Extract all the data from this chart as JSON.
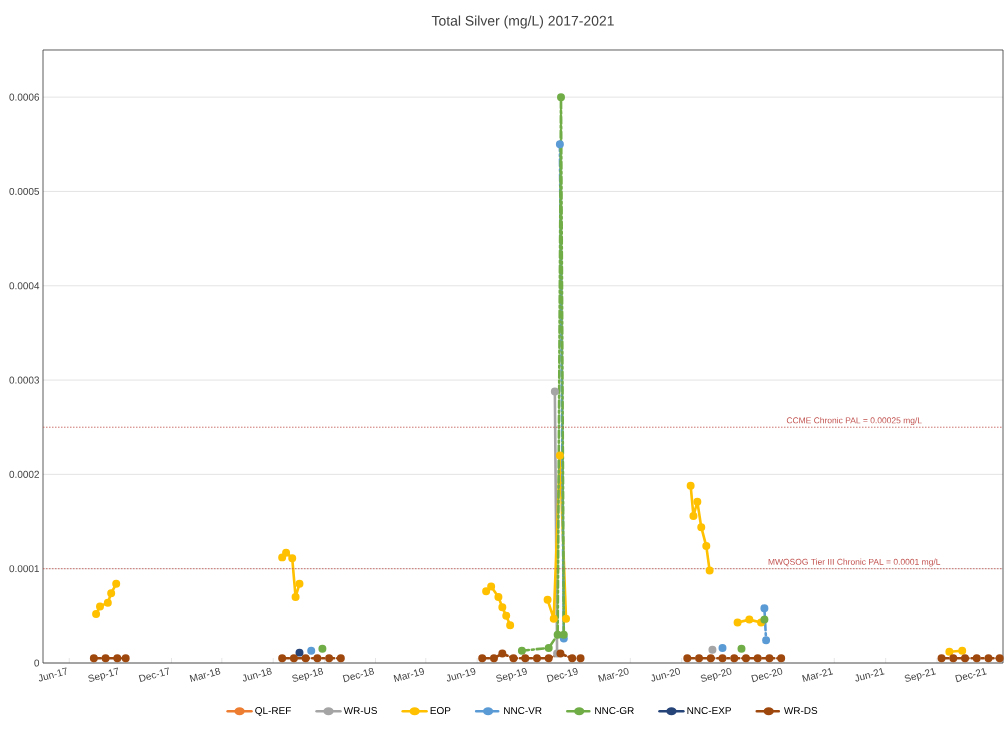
{
  "chart_data": {
    "type": "line",
    "title": "Total Silver (mg/L) 2017-2021",
    "xlim": [
      "2017-04-15",
      "2021-12-28"
    ],
    "xticks": [
      {
        "value": "2017-06-01",
        "label": "Jun-17"
      },
      {
        "value": "2017-09-01",
        "label": "Sep-17"
      },
      {
        "value": "2017-12-01",
        "label": "Dec-17"
      },
      {
        "value": "2018-03-01",
        "label": "Mar-18"
      },
      {
        "value": "2018-06-01",
        "label": "Jun-18"
      },
      {
        "value": "2018-09-01",
        "label": "Sep-18"
      },
      {
        "value": "2018-12-01",
        "label": "Dec-18"
      },
      {
        "value": "2019-03-01",
        "label": "Mar-19"
      },
      {
        "value": "2019-06-01",
        "label": "Jun-19"
      },
      {
        "value": "2019-09-01",
        "label": "Sep-19"
      },
      {
        "value": "2019-12-01",
        "label": "Dec-19"
      },
      {
        "value": "2020-03-01",
        "label": "Mar-20"
      },
      {
        "value": "2020-06-01",
        "label": "Jun-20"
      },
      {
        "value": "2020-09-01",
        "label": "Sep-20"
      },
      {
        "value": "2020-12-01",
        "label": "Dec-20"
      },
      {
        "value": "2021-03-01",
        "label": "Mar-21"
      },
      {
        "value": "2021-06-01",
        "label": "Jun-21"
      },
      {
        "value": "2021-09-01",
        "label": "Sep-21"
      },
      {
        "value": "2021-12-01",
        "label": "Dec-21"
      }
    ],
    "ylim": [
      0,
      0.00065
    ],
    "yticks": [
      0,
      0.0001,
      0.0002,
      0.0003,
      0.0004,
      0.0005,
      0.0006
    ],
    "grid": "y",
    "legend": "bottom",
    "marker": "circle",
    "ref_lines": [
      {
        "axis": "y",
        "value": 0.00025,
        "label": "CCME Chronic PAL = 0.00025 mg/L",
        "color": "#c0504d",
        "line_style": "dotted"
      },
      {
        "axis": "y",
        "value": 0.0001,
        "label": "MWQSOG Tier III Chronic PAL = 0.0001 mg/L",
        "color": "#c0504d",
        "line_style": "dotted"
      }
    ],
    "series": [
      {
        "name": "QL-REF",
        "color": "#ed7d31"
      },
      {
        "name": "WR-US",
        "color": "#a5a5a5",
        "x": [
          "2019-10-18",
          "2019-10-22",
          "2020-03-01",
          "2020-07-26"
        ],
        "values": [
          0.000288,
          1e-05,
          null,
          1.4e-05
        ]
      },
      {
        "name": "EOP",
        "color": "#ffc000",
        "x": [
          "2017-07-19",
          "2017-07-26",
          "2017-08-09",
          "2017-08-15",
          "2017-08-24",
          "2018-01-01",
          "2018-06-17",
          "2018-06-24",
          "2018-07-05",
          "2018-07-11",
          "2018-07-18",
          "2019-01-01",
          "2019-06-17",
          "2019-06-26",
          "2019-07-09",
          "2019-07-16",
          "2019-07-23",
          "2019-07-30",
          "2019-09-01",
          "2019-10-05",
          "2019-10-16",
          "2019-10-27",
          "2019-11-07",
          "2020-03-01",
          "2020-06-17",
          "2020-06-22",
          "2020-06-29",
          "2020-07-06",
          "2020-07-15",
          "2020-07-21",
          "2020-08-15",
          "2020-09-09",
          "2020-09-30",
          "2020-10-21",
          "2021-03-01",
          "2021-09-23",
          "2021-10-16"
        ],
        "values": [
          5.2e-05,
          6e-05,
          6.4e-05,
          7.4e-05,
          8.4e-05,
          null,
          0.000112,
          0.000117,
          0.000111,
          7e-05,
          8.4e-05,
          null,
          7.6e-05,
          8.1e-05,
          7e-05,
          5.9e-05,
          5e-05,
          4e-05,
          null,
          6.7e-05,
          4.7e-05,
          0.00022,
          4.7e-05,
          null,
          0.000188,
          0.000156,
          0.000171,
          0.000144,
          0.000124,
          9.8e-05,
          null,
          4.3e-05,
          4.6e-05,
          4.3e-05,
          null,
          1.2e-05,
          1.3e-05
        ]
      },
      {
        "name": "NNC-VR",
        "color": "#5b9bd5",
        "line_style": "dashed",
        "x": [
          "2018-08-08",
          "2019-01-01",
          "2019-10-27",
          "2019-11-03",
          "2020-03-01",
          "2020-08-13",
          "2020-09-20",
          "2020-10-27",
          "2020-10-30"
        ],
        "values": [
          1.3e-05,
          null,
          0.00055,
          2.6e-05,
          null,
          1.6e-05,
          null,
          5.8e-05,
          2.4e-05
        ]
      },
      {
        "name": "NNC-GR",
        "color": "#70ad47",
        "line_style": "dashed",
        "x": [
          "2018-08-28",
          "2019-01-01",
          "2019-08-20",
          "2019-10-07",
          "2019-10-23",
          "2019-10-29",
          "2019-11-03",
          "2020-03-01",
          "2020-09-16",
          "2020-10-01",
          "2020-10-27"
        ],
        "values": [
          1.5e-05,
          null,
          1.3e-05,
          1.6e-05,
          3e-05,
          0.0006,
          3e-05,
          null,
          1.5e-05,
          null,
          4.6e-05
        ]
      },
      {
        "name": "NNC-EXP",
        "color": "#264478",
        "x": [
          "2018-07-18"
        ],
        "values": [
          1.1e-05
        ]
      },
      {
        "name": "WR-DS",
        "color": "#9e480e",
        "line_style": "dashed",
        "x": [
          "2017-07-15",
          "2017-08-05",
          "2017-08-26",
          "2017-09-10",
          "2018-01-01",
          "2018-06-17",
          "2018-07-08",
          "2018-07-29",
          "2018-08-19",
          "2018-09-09",
          "2018-09-30",
          "2019-01-01",
          "2019-06-10",
          "2019-07-01",
          "2019-07-16",
          "2019-08-05",
          "2019-08-26",
          "2019-09-16",
          "2019-10-07",
          "2019-10-28",
          "2019-11-18",
          "2019-12-03",
          "2020-03-01",
          "2020-06-11",
          "2020-07-02",
          "2020-07-23",
          "2020-08-13",
          "2020-09-03",
          "2020-09-24",
          "2020-10-15",
          "2020-11-05",
          "2020-11-26",
          "2021-03-01",
          "2021-09-09",
          "2021-09-30",
          "2021-10-21",
          "2021-11-11",
          "2021-12-02",
          "2021-12-22"
        ],
        "values": [
          5e-06,
          5e-06,
          5e-06,
          5e-06,
          null,
          5e-06,
          5e-06,
          5e-06,
          5e-06,
          5e-06,
          5e-06,
          null,
          5e-06,
          5e-06,
          1e-05,
          5e-06,
          5e-06,
          5e-06,
          5e-06,
          1e-05,
          5e-06,
          5e-06,
          null,
          5e-06,
          5e-06,
          5e-06,
          5e-06,
          5e-06,
          5e-06,
          5e-06,
          5e-06,
          5e-06,
          null,
          5e-06,
          5e-06,
          5e-06,
          5e-06,
          5e-06,
          5e-06
        ]
      }
    ]
  }
}
